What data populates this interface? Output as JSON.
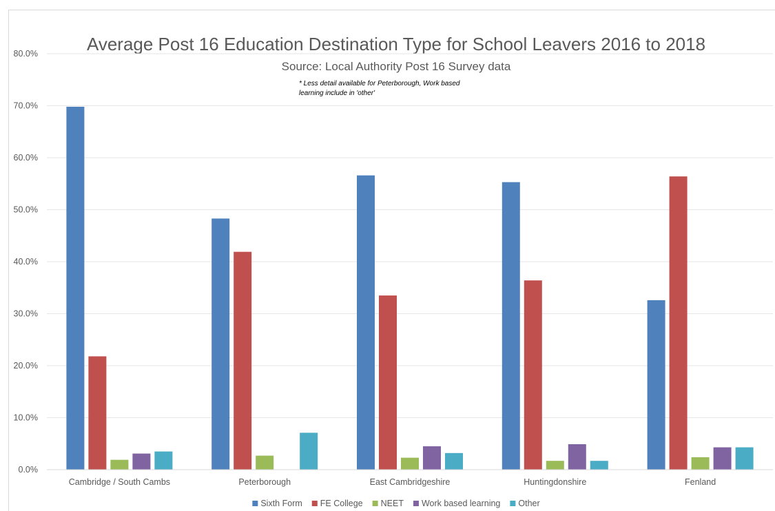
{
  "chart_data": {
    "type": "bar",
    "title": "Average Post 16 Education Destination Type for School Leavers 2016 to 2018",
    "subtitle": "Source: Local Authority Post 16 Survey data",
    "annotation": [
      "* Less detail available for Peterborough, Work based",
      "learning include in 'other'"
    ],
    "categories": [
      "Cambridge / South Cambs",
      "Peterborough",
      "East Cambridgeshire",
      "Huntingdonshire",
      "Fenland"
    ],
    "series": [
      {
        "name": "Sixth Form",
        "color": "#4F81BD",
        "values": [
          69.8,
          48.3,
          56.6,
          55.3,
          32.6
        ]
      },
      {
        "name": "FE College",
        "color": "#C0504D",
        "values": [
          21.8,
          41.9,
          33.5,
          36.4,
          56.4
        ]
      },
      {
        "name": "NEET",
        "color": "#9BBB59",
        "values": [
          1.9,
          2.7,
          2.3,
          1.7,
          2.4
        ]
      },
      {
        "name": "Work based learning",
        "color": "#8064A2",
        "values": [
          3.1,
          null,
          4.5,
          4.9,
          4.3
        ]
      },
      {
        "name": "Other",
        "color": "#4BACC6",
        "values": [
          3.5,
          7.1,
          3.2,
          1.7,
          4.3
        ]
      }
    ],
    "yticks": [
      "0.0%",
      "10.0%",
      "20.0%",
      "30.0%",
      "40.0%",
      "50.0%",
      "60.0%",
      "70.0%",
      "80.0%"
    ],
    "ylim": [
      0,
      80
    ],
    "grid": true,
    "legend_position": "bottom"
  }
}
